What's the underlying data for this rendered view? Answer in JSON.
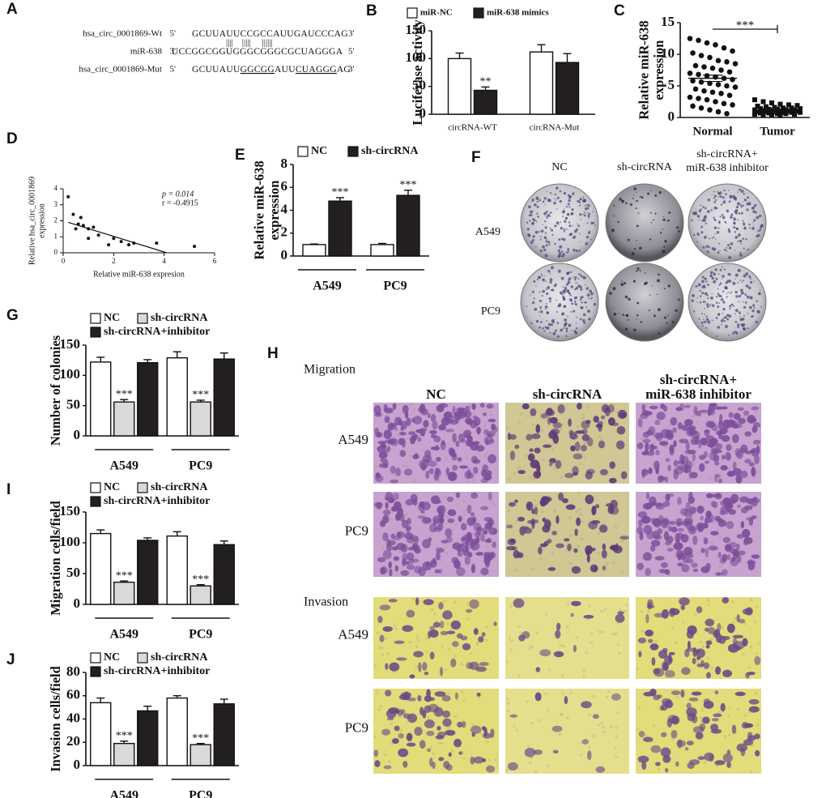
{
  "panel_a": {
    "panel": "A",
    "rows": [
      {
        "name": "hsa_circ_0001869-Wt",
        "end5": "5'",
        "parts": [
          {
            "text": "GCUUAUUCCGCCAUUGAUCCCAG"
          }
        ],
        "end3": "3'"
      },
      {
        "name": "miR-638",
        "end5": "3'",
        "parts": [
          {
            "text": "UCCGGCGGUGGGCGGGCGCUAGGGA"
          }
        ],
        "end3": "5'"
      },
      {
        "name": "hsa_circ_0001869-Mut",
        "end5": "5'",
        "parts": [
          {
            "text": "GCUUAUU"
          },
          {
            "text": "GGCGG",
            "underline": true
          },
          {
            "text": "AUU"
          },
          {
            "text": "CUAGGG",
            "underline": true
          },
          {
            "text": "AG"
          }
        ],
        "end3": "3'"
      }
    ],
    "pairing": "||||    |||||     ||||||"
  },
  "chart_data": [
    {
      "panel": "B",
      "type": "bar",
      "ylabel": [
        "Luciferase activity"
      ],
      "categories": [
        "circRNA-WT",
        "circRNA-Mut"
      ],
      "series": [
        {
          "name": "miR-NC",
          "color": "#ffffff",
          "values": [
            100,
            112
          ],
          "errors": [
            10,
            13
          ],
          "stars": [
            null,
            null
          ]
        },
        {
          "name": "miR-638 mimics",
          "color": "#231f20",
          "values": [
            43,
            93
          ],
          "errors": [
            6,
            16
          ],
          "stars": [
            "**",
            null
          ]
        }
      ],
      "ylim": [
        0,
        150
      ],
      "yticks": [
        0,
        50,
        100,
        150
      ]
    },
    {
      "panel": "C",
      "type": "strip",
      "ylabel": [
        "Relative miR-638",
        "expression"
      ],
      "groups": [
        {
          "name": "Normal",
          "mean": 6.2,
          "sem": 0.5,
          "values": [
            12.5,
            12.2,
            11.8,
            11.5,
            11.0,
            10.5,
            10.2,
            9.8,
            9.5,
            9.0,
            8.8,
            8.5,
            8.2,
            8.0,
            7.8,
            7.5,
            7.2,
            7.0,
            6.8,
            6.6,
            6.4,
            6.2,
            6.0,
            5.8,
            5.6,
            5.4,
            5.2,
            5.0,
            4.8,
            4.5,
            4.2,
            4.0,
            3.8,
            3.5,
            3.2,
            3.0,
            2.8,
            2.5,
            2.2,
            2.0,
            1.8,
            1.5,
            1.2,
            0.9,
            0.6
          ]
        },
        {
          "name": "Tumor",
          "mean": 1.2,
          "sem": 0.1,
          "values": [
            2.8,
            2.5,
            2.3,
            2.1,
            2.0,
            1.9,
            1.8,
            1.7,
            1.6,
            1.5,
            1.5,
            1.4,
            1.4,
            1.3,
            1.3,
            1.2,
            1.2,
            1.2,
            1.1,
            1.1,
            1.0,
            1.0,
            1.0,
            0.9,
            0.9,
            0.9,
            0.8,
            0.8,
            0.8,
            0.7,
            0.7,
            0.6,
            0.6,
            0.5,
            0.5,
            0.4,
            0.4,
            0.3
          ]
        }
      ],
      "significance": "***",
      "ylim": [
        0,
        15
      ],
      "yticks": [
        0,
        5,
        10,
        15
      ]
    },
    {
      "panel": "D",
      "type": "scatter",
      "ylabel": [
        "Relative hsa_circ_0001869",
        "expression"
      ],
      "xlabel": "Relative miR-638 expresion",
      "x": [
        0.2,
        0.4,
        0.5,
        0.6,
        0.7,
        0.8,
        1.0,
        1.0,
        1.2,
        1.4,
        1.8,
        2.0,
        2.3,
        2.6,
        2.8,
        3.7,
        5.2
      ],
      "y": [
        3.5,
        2.4,
        1.5,
        1.8,
        2.2,
        1.7,
        1.5,
        0.9,
        1.6,
        1.1,
        0.5,
        0.9,
        0.7,
        0.5,
        0.6,
        0.6,
        0.4
      ],
      "fit": {
        "x": [
          0.2,
          4.1
        ],
        "y": [
          1.9,
          0
        ]
      },
      "annotations": [
        "p = 0.014",
        "r = -0.4915"
      ],
      "xlim": [
        0,
        6
      ],
      "xticks": [
        0,
        2,
        4,
        6
      ],
      "ylim": [
        0,
        4
      ],
      "yticks": [
        0,
        1,
        2,
        3,
        4
      ]
    },
    {
      "panel": "E",
      "type": "bar",
      "ylabel": [
        "Relative miR-638",
        "expression"
      ],
      "categories": [
        "A549",
        "PC9"
      ],
      "series": [
        {
          "name": "NC",
          "color": "#ffffff",
          "values": [
            1.0,
            1.0
          ],
          "errors": [
            0.05,
            0.1
          ],
          "stars": [
            null,
            null
          ]
        },
        {
          "name": "sh-circRNA",
          "color": "#231f20",
          "values": [
            4.8,
            5.3
          ],
          "errors": [
            0.3,
            0.45
          ],
          "stars": [
            "***",
            "***"
          ]
        }
      ],
      "ylim": [
        0,
        8
      ],
      "yticks": [
        0,
        2,
        4,
        6,
        8
      ]
    },
    {
      "panel": "G",
      "type": "bar",
      "ylabel": [
        "Number of colonies"
      ],
      "categories": [
        "A549",
        "PC9"
      ],
      "series": [
        {
          "name": "NC",
          "color": "#ffffff",
          "values": [
            122,
            129
          ],
          "errors": [
            8,
            10
          ],
          "stars": [
            null,
            null
          ]
        },
        {
          "name": "sh-circRNA",
          "color": "#d9d9d9",
          "values": [
            56,
            56
          ],
          "errors": [
            4,
            3
          ],
          "stars": [
            "***",
            "***"
          ]
        },
        {
          "name": "sh-circRNA+inhibitor",
          "color": "#231f20",
          "values": [
            121,
            127
          ],
          "errors": [
            5,
            10
          ],
          "stars": [
            null,
            null
          ]
        }
      ],
      "ylim": [
        0,
        150
      ],
      "yticks": [
        0,
        50,
        100,
        150
      ]
    },
    {
      "panel": "I",
      "type": "bar",
      "ylabel": [
        "Migration cells/field"
      ],
      "categories": [
        "A549",
        "PC9"
      ],
      "series": [
        {
          "name": "NC",
          "color": "#ffffff",
          "values": [
            115,
            111
          ],
          "errors": [
            6,
            7
          ],
          "stars": [
            null,
            null
          ]
        },
        {
          "name": "sh-circRNA",
          "color": "#d9d9d9",
          "values": [
            36,
            30
          ],
          "errors": [
            2,
            2
          ],
          "stars": [
            "***",
            "***"
          ]
        },
        {
          "name": "sh-circRNA+inhibitor",
          "color": "#231f20",
          "values": [
            104,
            97
          ],
          "errors": [
            4,
            6
          ],
          "stars": [
            null,
            null
          ]
        }
      ],
      "ylim": [
        0,
        150
      ],
      "yticks": [
        0,
        50,
        100,
        150
      ]
    },
    {
      "panel": "J",
      "type": "bar",
      "ylabel": [
        "Invasion cells/field"
      ],
      "categories": [
        "A549",
        "PC9"
      ],
      "series": [
        {
          "name": "NC",
          "color": "#ffffff",
          "values": [
            54,
            58
          ],
          "errors": [
            4,
            2
          ],
          "stars": [
            null,
            null
          ]
        },
        {
          "name": "sh-circRNA",
          "color": "#d9d9d9",
          "values": [
            19,
            18
          ],
          "errors": [
            2,
            1
          ],
          "stars": [
            "***",
            "***"
          ]
        },
        {
          "name": "sh-circRNA+inhibitor",
          "color": "#231f20",
          "values": [
            47,
            53
          ],
          "errors": [
            4,
            4
          ],
          "stars": [
            null,
            null
          ]
        }
      ],
      "ylim": [
        0,
        80
      ],
      "yticks": [
        0,
        20,
        40,
        60,
        80
      ]
    }
  ],
  "panel_f": {
    "panel": "F",
    "columns": [
      [
        "NC"
      ],
      [
        "sh-circRNA"
      ],
      [
        "sh-circRNA+",
        "miR-638 inhibitor"
      ]
    ],
    "rows": [
      "A549",
      "PC9"
    ]
  },
  "panel_h": {
    "panel": "H",
    "columns": [
      [
        "NC"
      ],
      [
        "sh-circRNA"
      ],
      [
        "sh-circRNA+",
        "miR-638 inhibitor"
      ]
    ],
    "sections": [
      {
        "title": "Migration",
        "rows": [
          "A549",
          "PC9"
        ]
      },
      {
        "title": "Invasion",
        "rows": [
          "A549",
          "PC9"
        ]
      }
    ]
  }
}
